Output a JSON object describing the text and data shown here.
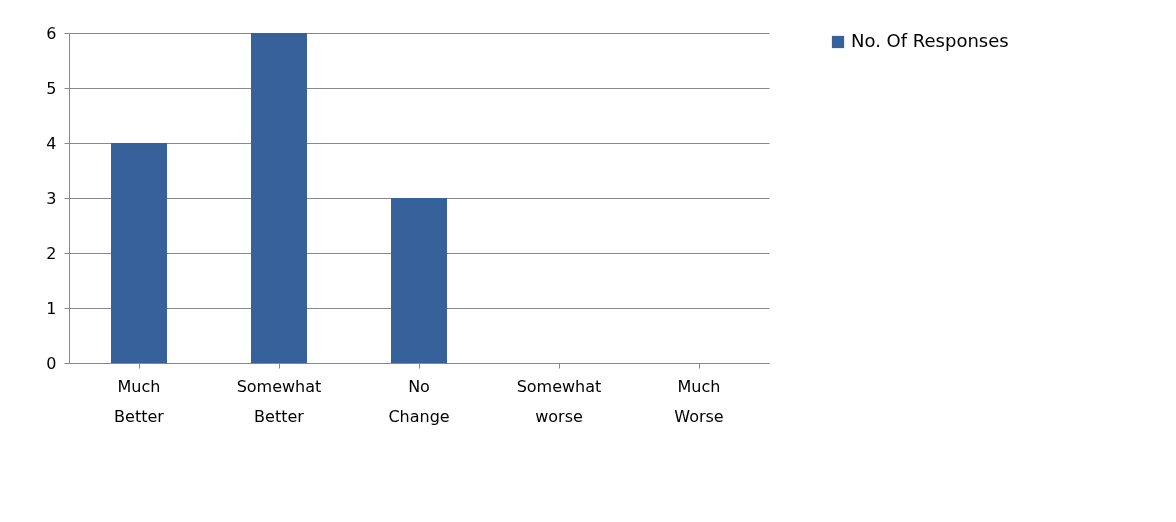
{
  "chart_data": {
    "type": "bar",
    "categories": [
      "Much Better",
      "Somewhat Better",
      "No Change",
      "Somewhat worse",
      "Much Worse"
    ],
    "series": [
      {
        "name": "No. Of Responses",
        "color": "#36619a",
        "values": [
          4,
          6,
          3,
          0,
          0
        ]
      }
    ],
    "ylim": [
      0,
      6
    ],
    "yticks": [
      0,
      1,
      2,
      3,
      4,
      5,
      6
    ],
    "grid": "y",
    "legend": "right"
  }
}
